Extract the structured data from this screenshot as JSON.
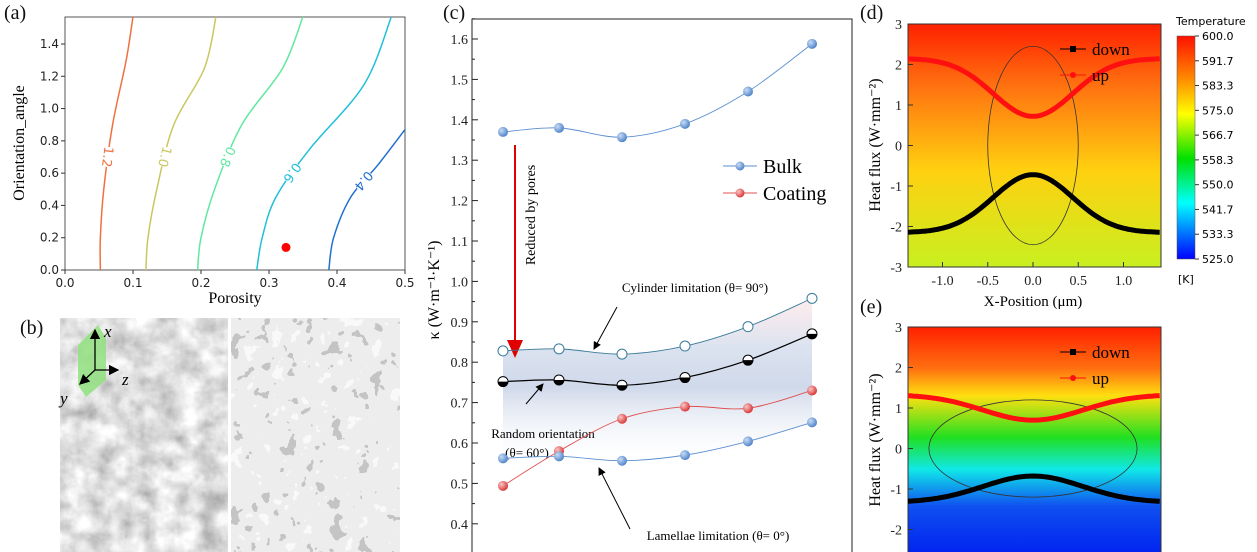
{
  "panel_labels": {
    "a": "(a)",
    "b": "(b)",
    "c": "(c)",
    "d": "(d)",
    "e": "(e)"
  },
  "colors": {
    "bulk": "#5b8fd0",
    "coating": "#e05050",
    "random": "#000000",
    "arrow_red": "#e00000",
    "point_red": "#ff0000"
  },
  "chart_data": [
    {
      "id": "a",
      "type": "contour",
      "xlabel": "Porosity",
      "ylabel": "Orientation_angle",
      "xlim": [
        0,
        0.5
      ],
      "ylim": [
        0,
        1.57
      ],
      "xticks": [
        "0.0",
        "0.1",
        "0.2",
        "0.3",
        "0.4",
        "0.5"
      ],
      "yticks": [
        "0.0",
        "0.2",
        "0.4",
        "0.6",
        "0.8",
        "1.0",
        "1.2",
        "1.4"
      ],
      "contours": [
        {
          "level": "1.2",
          "color": "#f07040",
          "points": [
            [
              0.052,
              0
            ],
            [
              0.052,
              0.2
            ],
            [
              0.057,
              0.5
            ],
            [
              0.07,
              0.9
            ],
            [
              0.09,
              1.3
            ],
            [
              0.1,
              1.57
            ]
          ]
        },
        {
          "level": "1.0",
          "color": "#c8c860",
          "points": [
            [
              0.119,
              0
            ],
            [
              0.122,
              0.2
            ],
            [
              0.135,
              0.5
            ],
            [
              0.16,
              0.9
            ],
            [
              0.205,
              1.25
            ],
            [
              0.222,
              1.57
            ]
          ]
        },
        {
          "level": "0.8",
          "color": "#60e8a0",
          "points": [
            [
              0.195,
              0
            ],
            [
              0.2,
              0.2
            ],
            [
              0.22,
              0.5
            ],
            [
              0.26,
              0.9
            ],
            [
              0.32,
              1.25
            ],
            [
              0.35,
              1.57
            ]
          ]
        },
        {
          "level": "0.6",
          "color": "#20c0d8",
          "points": [
            [
              0.282,
              0
            ],
            [
              0.29,
              0.2
            ],
            [
              0.31,
              0.45
            ],
            [
              0.36,
              0.75
            ],
            [
              0.44,
              1.15
            ],
            [
              0.48,
              1.57
            ]
          ]
        },
        {
          "level": "0.4",
          "color": "#2070d0",
          "points": [
            [
              0.388,
              0
            ],
            [
              0.395,
              0.2
            ],
            [
              0.42,
              0.45
            ],
            [
              0.46,
              0.65
            ],
            [
              0.5,
              0.87
            ]
          ]
        }
      ],
      "marker": {
        "x": 0.325,
        "y": 0.14
      }
    },
    {
      "id": "b",
      "type": "image",
      "axes": {
        "x": "x",
        "y": "y",
        "z": "z"
      }
    },
    {
      "id": "c",
      "type": "line",
      "ylabel": "κ (W·m⁻¹·K⁻¹)",
      "ylim": [
        0.4,
        1.65
      ],
      "yticks": [
        "0.4",
        "0.5",
        "0.6",
        "0.7",
        "0.8",
        "0.9",
        "1.0",
        "1.1",
        "1.2",
        "1.3",
        "1.4",
        "1.5",
        "1.6"
      ],
      "x": [
        1,
        2,
        3,
        4,
        5,
        6
      ],
      "series": [
        {
          "name": "Bulk",
          "legend": true,
          "style": "bulk",
          "values": [
            1.37,
            1.38,
            1.357,
            1.39,
            1.47,
            1.588
          ]
        },
        {
          "name": "Coating",
          "legend": true,
          "style": "coating",
          "values": [
            0.494,
            0.58,
            0.66,
            0.69,
            0.686,
            0.73
          ]
        },
        {
          "name": "Cylinder limitation",
          "legend": false,
          "style": "open",
          "values": [
            0.828,
            0.833,
            0.82,
            0.84,
            0.888,
            0.958
          ]
        },
        {
          "name": "Random orientation",
          "legend": false,
          "style": "random",
          "values": [
            0.752,
            0.756,
            0.743,
            0.762,
            0.805,
            0.87
          ]
        },
        {
          "name": "Lamellae limitation",
          "legend": false,
          "style": "bulk",
          "values": [
            0.562,
            0.567,
            0.556,
            0.57,
            0.604,
            0.651
          ]
        }
      ],
      "annotations": {
        "reduced": "Reduced by pores",
        "cylinder": "Cylinder limitation (θ= 90°)",
        "random_1": "Random orientation",
        "random_2": "(θ= 60°)",
        "lamellae": "Lamellae limitation (θ= 0°)"
      }
    },
    {
      "id": "d",
      "type": "line",
      "xlabel": "X-Position (μm)",
      "ylabel": "Heat flux (W·mm⁻²)",
      "xlim": [
        -1.38,
        1.38
      ],
      "ylim": [
        -3,
        3
      ],
      "xticks": [
        "-1.0",
        "-0.5",
        "0.0",
        "0.5",
        "1.0"
      ],
      "yticks": [
        "-3",
        "-2",
        "-1",
        "0",
        "1",
        "2",
        "3"
      ],
      "series": [
        {
          "name": "down",
          "edge": -2.15,
          "center": -0.72,
          "width": 0.44
        },
        {
          "name": "up",
          "edge": 2.15,
          "center": 0.72,
          "width": 0.44
        }
      ],
      "ellipse": {
        "rx": 0.5,
        "ry": 2.45
      },
      "colorbar": {
        "title": "Temperature",
        "unit": "[K]",
        "ticks": [
          "600.0",
          "591.7",
          "583.3",
          "575.0",
          "566.7",
          "558.3",
          "550.0",
          "541.7",
          "533.3",
          "525.0"
        ]
      }
    },
    {
      "id": "e",
      "type": "line",
      "ylabel": "Heat flux (W·mm⁻²)",
      "xlim": [
        -1.38,
        1.38
      ],
      "ylim": [
        -3,
        3
      ],
      "yticks": [
        "-2",
        "-1",
        "0",
        "1",
        "2",
        "3"
      ],
      "series": [
        {
          "name": "down",
          "edge": -1.33,
          "center": -0.68,
          "width": 0.55
        },
        {
          "name": "up",
          "edge": 1.33,
          "center": 0.7,
          "width": 0.55
        }
      ],
      "ellipse": {
        "rx": 1.15,
        "ry": 1.2
      }
    }
  ]
}
